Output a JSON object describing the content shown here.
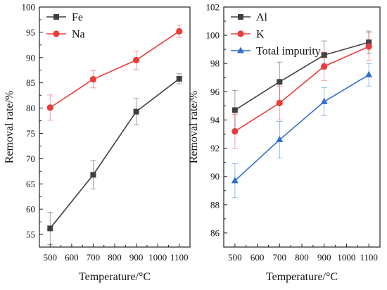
{
  "chart_data": [
    {
      "type": "line",
      "xlabel": "Temperature/°C",
      "ylabel": "Removal rate/%",
      "xlim": [
        450,
        1150
      ],
      "ylim": [
        52.5,
        100
      ],
      "xticks": [
        500,
        600,
        700,
        800,
        900,
        1000,
        1100
      ],
      "yticks": [
        55,
        60,
        65,
        70,
        75,
        80,
        85,
        90,
        95,
        100
      ],
      "x": [
        500,
        700,
        900,
        1100
      ],
      "legend_position": "top-left",
      "series": [
        {
          "name": "Fe",
          "color": "#404040",
          "marker": "square",
          "values": [
            56.2,
            66.8,
            79.3,
            85.8
          ],
          "error": [
            3.2,
            2.8,
            2.6,
            1.0
          ]
        },
        {
          "name": "Na",
          "color": "#ec3b3b",
          "marker": "circle",
          "values": [
            80.1,
            85.7,
            89.5,
            95.2
          ],
          "error": [
            2.5,
            1.7,
            1.8,
            1.2
          ]
        }
      ]
    },
    {
      "type": "line",
      "xlabel": "Temperature/°C",
      "ylabel": "Removal rate/%",
      "xlim": [
        450,
        1150
      ],
      "ylim": [
        85,
        102
      ],
      "xticks": [
        500,
        600,
        700,
        800,
        900,
        1000,
        1100
      ],
      "yticks": [
        86,
        88,
        90,
        92,
        94,
        96,
        98,
        100,
        102
      ],
      "x": [
        500,
        700,
        900,
        1100
      ],
      "legend_position": "top-left",
      "series": [
        {
          "name": "Al",
          "color": "#404040",
          "marker": "square",
          "values": [
            94.7,
            96.7,
            98.6,
            99.5
          ],
          "error": [
            1.4,
            1.4,
            1.0,
            0.8
          ]
        },
        {
          "name": "K",
          "color": "#ec3b3b",
          "marker": "circle",
          "values": [
            93.2,
            95.2,
            97.8,
            99.2
          ],
          "error": [
            1.2,
            1.2,
            1.0,
            1.0
          ]
        },
        {
          "name": "Total impurity",
          "color": "#2f6fd0",
          "marker": "triangle",
          "values": [
            89.7,
            92.6,
            95.3,
            97.2
          ],
          "error": [
            1.2,
            1.3,
            1.0,
            0.8
          ]
        }
      ]
    }
  ]
}
